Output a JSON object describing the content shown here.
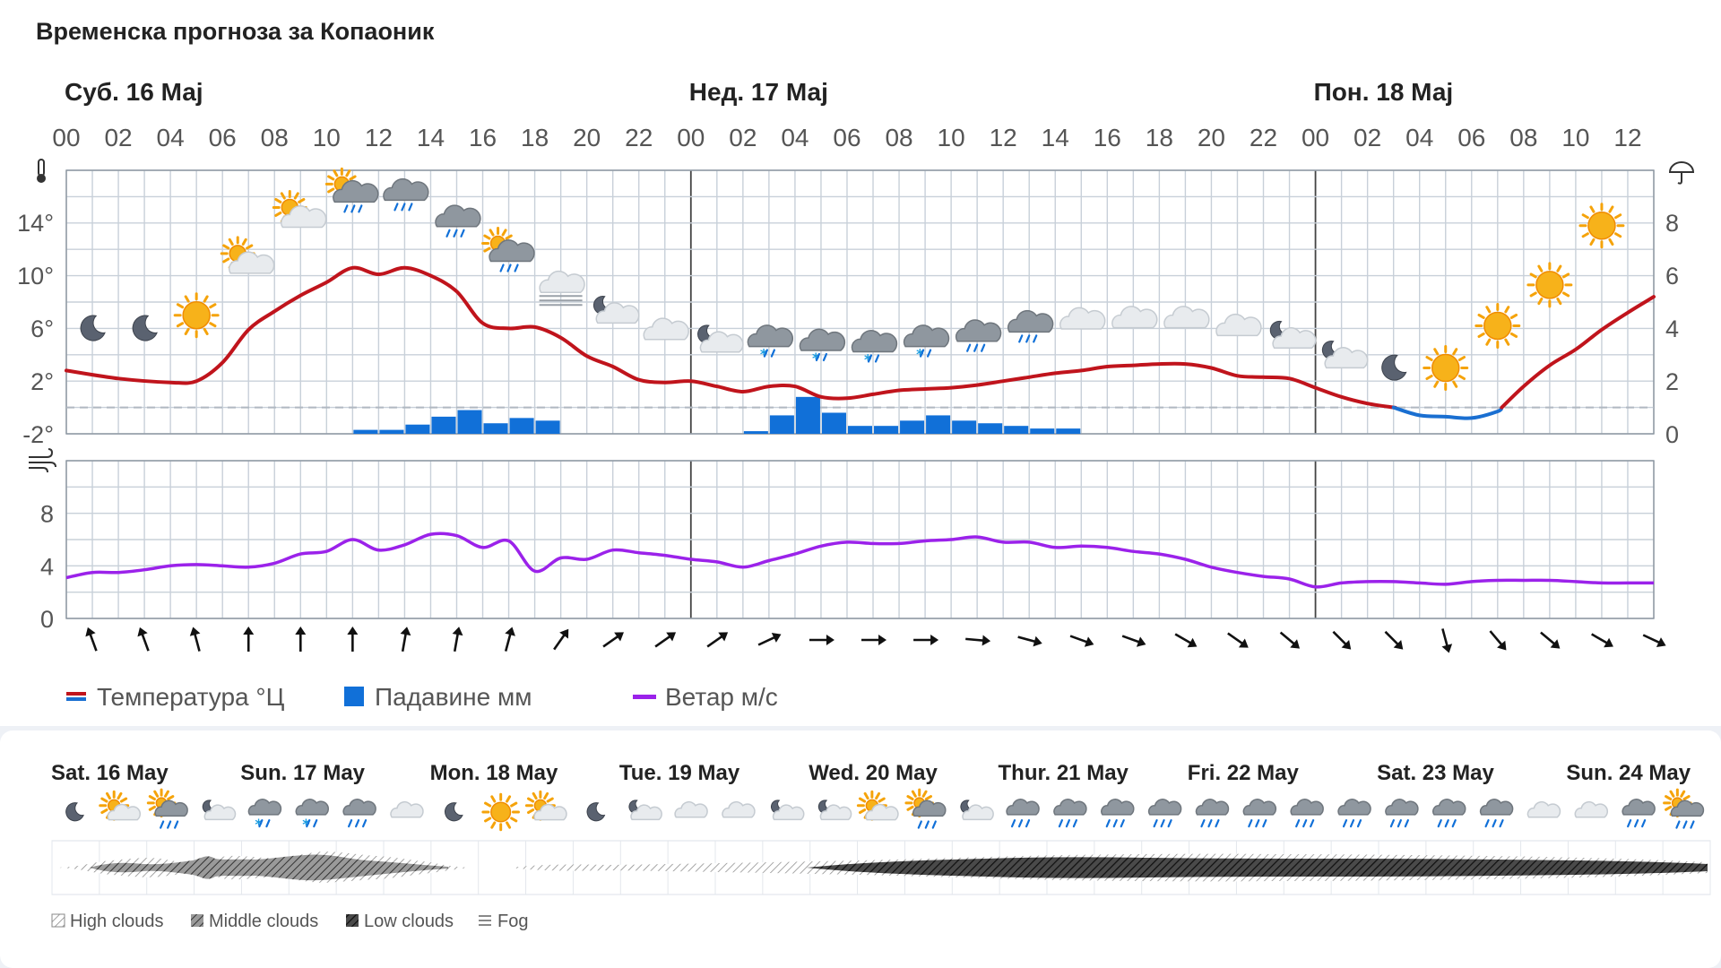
{
  "title": "Временска прогноза за Копаоник",
  "day_labels": [
    {
      "label": "Суб. 16 Мај",
      "hour_index": 0
    },
    {
      "label": "Нед. 17 Мај",
      "hour_index": 24
    },
    {
      "label": "Пон. 18 Мај",
      "hour_index": 48
    }
  ],
  "hour_ticks": [
    "00",
    "02",
    "04",
    "06",
    "08",
    "10",
    "12",
    "14",
    "16",
    "18",
    "20",
    "22",
    "00",
    "02",
    "04",
    "06",
    "08",
    "10",
    "12",
    "14",
    "16",
    "18",
    "20",
    "22",
    "00",
    "02",
    "04",
    "06",
    "08",
    "10",
    "12"
  ],
  "icons": {
    "thermometer": "thermometer-icon",
    "umbrella": "umbrella-icon",
    "wind": "wind-icon"
  },
  "colors": {
    "temp_warm": "#c0141c",
    "temp_cold": "#1a6fd1",
    "precip": "#1170d8",
    "wind": "#9b22ea",
    "grid": "#c8d0d9",
    "frame": "#8a949e"
  },
  "chart_data": [
    {
      "type": "line",
      "name": "temperature-precipitation",
      "x_unit": "hours from Sat 16 May 00:00",
      "x_range": [
        0,
        61
      ],
      "y_left_label": "°",
      "y_left_ticks": [
        "14°",
        "10°",
        "6°",
        "2°",
        "-2°"
      ],
      "y_left_range": [
        -2,
        18
      ],
      "y_right_ticks": [
        "8",
        "6",
        "4",
        "2",
        "0"
      ],
      "y_right_range": [
        0,
        10
      ],
      "freezing_line": 0,
      "temperature": [
        [
          0,
          2.8
        ],
        [
          2,
          2.2
        ],
        [
          4,
          1.9
        ],
        [
          5,
          2.0
        ],
        [
          6,
          3.4
        ],
        [
          7,
          5.9
        ],
        [
          8,
          7.3
        ],
        [
          9,
          8.5
        ],
        [
          10,
          9.5
        ],
        [
          11,
          10.6
        ],
        [
          12,
          10.1
        ],
        [
          13,
          10.6
        ],
        [
          14,
          10.0
        ],
        [
          15,
          8.8
        ],
        [
          16,
          6.4
        ],
        [
          17,
          6.0
        ],
        [
          18,
          6.1
        ],
        [
          19,
          5.3
        ],
        [
          20,
          3.9
        ],
        [
          21,
          3.1
        ],
        [
          22,
          2.1
        ],
        [
          23,
          1.9
        ],
        [
          24,
          2.0
        ],
        [
          25,
          1.6
        ],
        [
          26,
          1.2
        ],
        [
          27,
          1.6
        ],
        [
          28,
          1.6
        ],
        [
          29,
          0.8
        ],
        [
          30,
          0.7
        ],
        [
          31,
          1.0
        ],
        [
          32,
          1.3
        ],
        [
          33,
          1.4
        ],
        [
          34,
          1.5
        ],
        [
          35,
          1.7
        ],
        [
          36,
          2.0
        ],
        [
          37,
          2.3
        ],
        [
          38,
          2.6
        ],
        [
          39,
          2.8
        ],
        [
          40,
          3.1
        ],
        [
          41,
          3.2
        ],
        [
          42,
          3.3
        ],
        [
          43,
          3.3
        ],
        [
          44,
          3.0
        ],
        [
          45,
          2.4
        ],
        [
          46,
          2.3
        ],
        [
          47,
          2.2
        ],
        [
          48,
          1.5
        ],
        [
          49,
          0.8
        ],
        [
          50,
          0.3
        ],
        [
          51,
          0.0
        ],
        [
          52,
          -0.6
        ],
        [
          53,
          -0.7
        ],
        [
          54,
          -0.8
        ],
        [
          55,
          -0.3
        ],
        [
          56,
          1.6
        ],
        [
          57,
          3.2
        ],
        [
          58,
          4.4
        ],
        [
          59,
          5.9
        ],
        [
          60,
          7.2
        ],
        [
          61,
          8.4
        ]
      ],
      "precipitation_mm": [
        [
          11,
          0.15
        ],
        [
          12,
          0.15
        ],
        [
          13,
          0.35
        ],
        [
          14,
          0.65
        ],
        [
          15,
          0.9
        ],
        [
          16,
          0.4
        ],
        [
          17,
          0.6
        ],
        [
          18,
          0.5
        ],
        [
          26,
          0.1
        ],
        [
          27,
          0.7
        ],
        [
          28,
          1.4
        ],
        [
          29,
          0.8
        ],
        [
          30,
          0.3
        ],
        [
          31,
          0.3
        ],
        [
          32,
          0.5
        ],
        [
          33,
          0.7
        ],
        [
          34,
          0.5
        ],
        [
          35,
          0.4
        ],
        [
          36,
          0.3
        ],
        [
          37,
          0.2
        ],
        [
          38,
          0.2
        ]
      ],
      "weather_icons": [
        {
          "hour": 1,
          "icon": "moon-icon",
          "temp": 6.0
        },
        {
          "hour": 3,
          "icon": "moon-icon",
          "temp": 6.0
        },
        {
          "hour": 5,
          "icon": "sun-icon",
          "temp": 7.0
        },
        {
          "hour": 7,
          "icon": "partly-cloudy-day-icon",
          "temp": 11.0
        },
        {
          "hour": 9,
          "icon": "partly-cloudy-day-icon",
          "temp": 14.5
        },
        {
          "hour": 11,
          "icon": "rain-sun-cloud-icon",
          "temp": 16.0
        },
        {
          "hour": 13,
          "icon": "rain-cloud-icon",
          "temp": 16.0
        },
        {
          "hour": 15,
          "icon": "rain-cloud-icon",
          "temp": 14.0
        },
        {
          "hour": 17,
          "icon": "rain-sun-cloud-icon",
          "temp": 11.5
        },
        {
          "hour": 19,
          "icon": "fog-cloud-icon",
          "temp": 9.0
        },
        {
          "hour": 21,
          "icon": "partly-cloudy-night-icon",
          "temp": 7.2
        },
        {
          "hour": 23,
          "icon": "cloud-icon",
          "temp": 5.7
        },
        {
          "hour": 25,
          "icon": "partly-cloudy-night-icon",
          "temp": 5.0
        },
        {
          "hour": 27,
          "icon": "snow-rain-cloud-icon",
          "temp": 4.9
        },
        {
          "hour": 29,
          "icon": "snow-rain-cloud-icon",
          "temp": 4.6
        },
        {
          "hour": 31,
          "icon": "snow-rain-cloud-icon",
          "temp": 4.5
        },
        {
          "hour": 33,
          "icon": "snow-rain-cloud-icon",
          "temp": 4.9
        },
        {
          "hour": 35,
          "icon": "rain-cloud-icon",
          "temp": 5.3
        },
        {
          "hour": 37,
          "icon": "rain-cloud-icon",
          "temp": 6.0
        },
        {
          "hour": 39,
          "icon": "cloud-icon",
          "temp": 6.5
        },
        {
          "hour": 41,
          "icon": "cloud-icon",
          "temp": 6.6
        },
        {
          "hour": 43,
          "icon": "cloud-icon",
          "temp": 6.6
        },
        {
          "hour": 45,
          "icon": "cloud-icon",
          "temp": 6.0
        },
        {
          "hour": 47,
          "icon": "partly-cloudy-night-icon",
          "temp": 5.3
        },
        {
          "hour": 49,
          "icon": "partly-cloudy-night-icon",
          "temp": 3.8
        },
        {
          "hour": 51,
          "icon": "moon-icon",
          "temp": 3.0
        },
        {
          "hour": 53,
          "icon": "sun-icon",
          "temp": 3.0
        },
        {
          "hour": 55,
          "icon": "sun-icon",
          "temp": 6.2
        },
        {
          "hour": 57,
          "icon": "sun-icon",
          "temp": 9.3
        },
        {
          "hour": 59,
          "icon": "sun-icon",
          "temp": 13.8
        }
      ]
    },
    {
      "type": "line",
      "name": "wind",
      "x_range": [
        0,
        61
      ],
      "y_ticks": [
        "8",
        "4",
        "0"
      ],
      "y_range": [
        0,
        12
      ],
      "wind_ms": [
        [
          0,
          3.1
        ],
        [
          1,
          3.5
        ],
        [
          2,
          3.5
        ],
        [
          3,
          3.7
        ],
        [
          4,
          4.0
        ],
        [
          5,
          4.1
        ],
        [
          6,
          4.0
        ],
        [
          7,
          3.9
        ],
        [
          8,
          4.2
        ],
        [
          9,
          4.9
        ],
        [
          10,
          5.1
        ],
        [
          11,
          6.0
        ],
        [
          12,
          5.2
        ],
        [
          13,
          5.6
        ],
        [
          14,
          6.4
        ],
        [
          15,
          6.3
        ],
        [
          16,
          5.4
        ],
        [
          17,
          5.9
        ],
        [
          18,
          3.6
        ],
        [
          19,
          4.6
        ],
        [
          20,
          4.5
        ],
        [
          21,
          5.2
        ],
        [
          22,
          5.0
        ],
        [
          23,
          4.8
        ],
        [
          24,
          4.5
        ],
        [
          25,
          4.3
        ],
        [
          26,
          3.9
        ],
        [
          27,
          4.4
        ],
        [
          28,
          4.9
        ],
        [
          29,
          5.5
        ],
        [
          30,
          5.8
        ],
        [
          31,
          5.7
        ],
        [
          32,
          5.7
        ],
        [
          33,
          5.9
        ],
        [
          34,
          6.0
        ],
        [
          35,
          6.2
        ],
        [
          36,
          5.8
        ],
        [
          37,
          5.8
        ],
        [
          38,
          5.4
        ],
        [
          39,
          5.5
        ],
        [
          40,
          5.4
        ],
        [
          41,
          5.1
        ],
        [
          42,
          4.9
        ],
        [
          43,
          4.5
        ],
        [
          44,
          3.9
        ],
        [
          45,
          3.5
        ],
        [
          46,
          3.2
        ],
        [
          47,
          3.0
        ],
        [
          48,
          2.4
        ],
        [
          49,
          2.7
        ],
        [
          50,
          2.8
        ],
        [
          51,
          2.8
        ],
        [
          52,
          2.7
        ],
        [
          53,
          2.6
        ],
        [
          54,
          2.8
        ],
        [
          55,
          2.9
        ],
        [
          56,
          2.9
        ],
        [
          57,
          2.9
        ],
        [
          58,
          2.8
        ],
        [
          59,
          2.7
        ],
        [
          60,
          2.7
        ],
        [
          61,
          2.7
        ]
      ],
      "wind_dir_deg": [
        [
          1,
          -20
        ],
        [
          3,
          -20
        ],
        [
          5,
          -15
        ],
        [
          7,
          0
        ],
        [
          9,
          0
        ],
        [
          11,
          0
        ],
        [
          13,
          10
        ],
        [
          15,
          10
        ],
        [
          17,
          15
        ],
        [
          19,
          35
        ],
        [
          21,
          55
        ],
        [
          23,
          55
        ],
        [
          25,
          55
        ],
        [
          27,
          65
        ],
        [
          29,
          90
        ],
        [
          31,
          90
        ],
        [
          33,
          90
        ],
        [
          35,
          95
        ],
        [
          37,
          105
        ],
        [
          39,
          110
        ],
        [
          41,
          110
        ],
        [
          43,
          120
        ],
        [
          45,
          125
        ],
        [
          47,
          130
        ],
        [
          49,
          135
        ],
        [
          51,
          135
        ],
        [
          53,
          165
        ],
        [
          55,
          140
        ],
        [
          57,
          130
        ],
        [
          59,
          120
        ],
        [
          61,
          115
        ]
      ]
    }
  ],
  "legend": {
    "temperature": "Температура °Ц",
    "precipitation": "Падавине мм",
    "wind": "Ветар м/с"
  },
  "week": {
    "days": [
      "Sat. 16 May",
      "Sun. 17 May",
      "Mon. 18 May",
      "Tue. 19 May",
      "Wed. 20 May",
      "Thur. 21 May",
      "Fri. 22 May",
      "Sat. 23 May",
      "Sun. 24 May"
    ],
    "icons": [
      "moon-icon",
      "partly-cloudy-day-icon",
      "rain-sun-cloud-icon",
      "partly-cloudy-night-icon",
      "snow-rain-cloud-icon",
      "snow-rain-cloud-icon",
      "rain-cloud-icon",
      "cloud-icon",
      "moon-icon",
      "sun-icon",
      "partly-cloudy-day-icon",
      "moon-icon",
      "partly-cloudy-night-icon",
      "cloud-icon",
      "cloud-icon",
      "partly-cloudy-night-icon",
      "partly-cloudy-night-icon",
      "partly-cloudy-day-icon",
      "rain-sun-cloud-icon",
      "partly-cloudy-night-icon",
      "rain-cloud-icon",
      "rain-cloud-icon",
      "rain-cloud-icon",
      "rain-cloud-icon",
      "rain-cloud-icon",
      "rain-cloud-icon",
      "rain-cloud-icon",
      "rain-cloud-icon",
      "rain-cloud-icon",
      "rain-cloud-icon",
      "rain-cloud-icon",
      "cloud-icon",
      "cloud-icon",
      "rain-cloud-icon",
      "rain-sun-cloud-icon"
    ],
    "cloud_legend": [
      "High clouds",
      "Middle clouds",
      "Low clouds",
      "Fog"
    ]
  }
}
